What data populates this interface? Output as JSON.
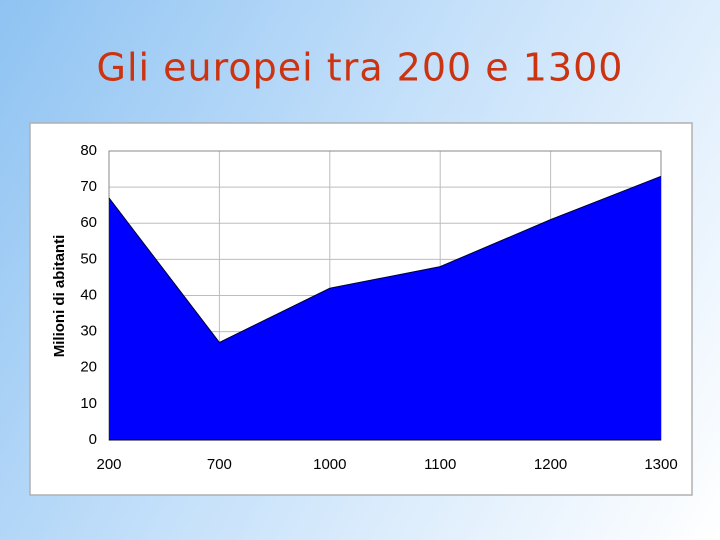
{
  "chart_data": {
    "type": "area",
    "title": "Gli europei tra 200 e 1300",
    "y_label": "Milioni di abitanti",
    "categories": [
      "200",
      "700",
      "1000",
      "1100",
      "1200",
      "1300"
    ],
    "values": [
      67,
      27,
      42,
      48,
      61,
      73
    ],
    "color": "#0000ff",
    "ylim": [
      0,
      80
    ],
    "yticks": [
      0,
      10,
      20,
      30,
      40,
      50,
      60,
      70,
      80
    ],
    "grid": true
  }
}
